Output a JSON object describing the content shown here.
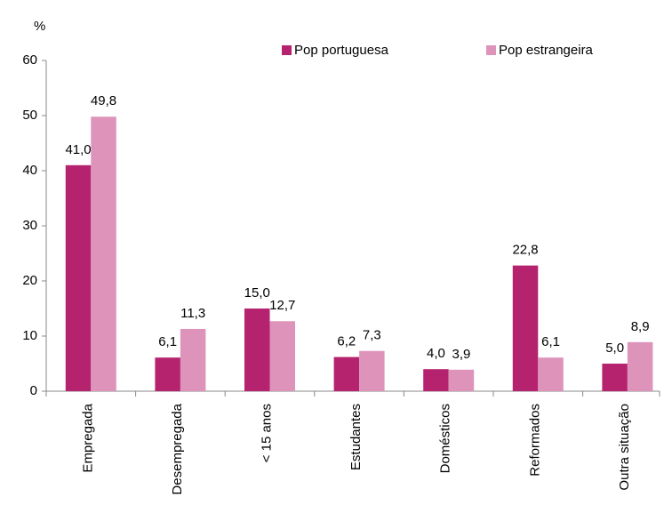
{
  "chart_data": {
    "type": "bar",
    "y_label": "%",
    "categories": [
      "Empregada",
      "Desempregada",
      "< 15 anos",
      "Estudantes",
      "Domésticos",
      "Reformados",
      "Outra situação"
    ],
    "series": [
      {
        "name": "Pop portuguesa",
        "color": "#b5236e",
        "values": [
          41.0,
          6.1,
          15.0,
          6.2,
          4.0,
          22.8,
          5.0
        ],
        "value_labels": [
          "41,0",
          "6,1",
          "15,0",
          "6,2",
          "4,0",
          "22,8",
          "5,0"
        ]
      },
      {
        "name": "Pop estrangeira",
        "color": "#de93bb",
        "values": [
          49.8,
          11.3,
          12.7,
          7.3,
          3.9,
          6.1,
          8.9
        ],
        "value_labels": [
          "49,8",
          "11,3",
          "12,7",
          "7,3",
          "3,9",
          "6,1",
          "8,9"
        ]
      }
    ],
    "ylim": [
      0,
      60
    ],
    "yticks": [
      0,
      10,
      20,
      30,
      40,
      50,
      60
    ],
    "grid": false,
    "legend": "top"
  }
}
